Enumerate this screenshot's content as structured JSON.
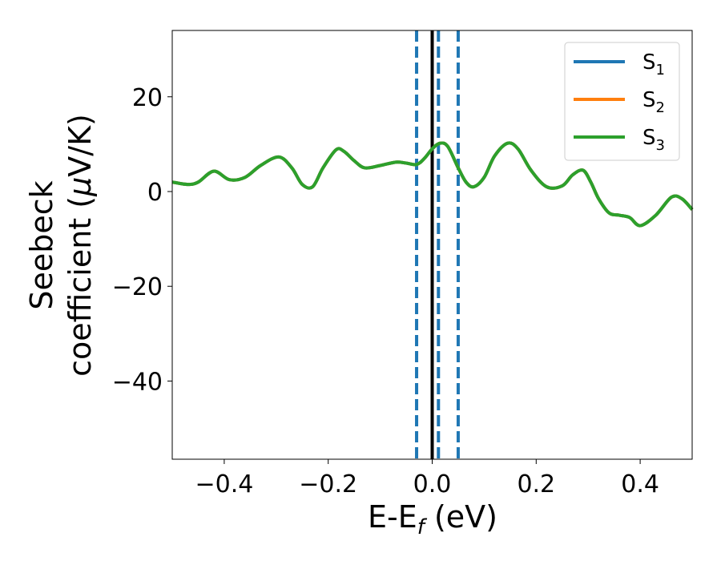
{
  "chart_data": {
    "type": "line",
    "xlabel_main": "E-E",
    "xlabel_sub": "f",
    "xlabel_unit": " (eV)",
    "ylabel_line1": "Seebeck",
    "ylabel_line2_prefix": "coefficient  (",
    "ylabel_mu": "μ",
    "ylabel_line2_suffix": "V/K)",
    "xlim": [
      -0.5,
      0.5
    ],
    "ylim": [
      -56.5,
      34
    ],
    "x_ticks": [
      -0.4,
      -0.2,
      0.0,
      0.2,
      0.4
    ],
    "x_tick_labels": [
      "−0.4",
      "−0.2",
      "0.0",
      "0.2",
      "0.4"
    ],
    "y_ticks": [
      20,
      0,
      -20,
      -40
    ],
    "y_tick_labels": [
      "20",
      "0",
      "−20",
      "−40"
    ],
    "grid": false,
    "legend_position": "top-right",
    "series": [
      {
        "name": "S",
        "sub": "1",
        "color": "#1f77b4",
        "x": [
          -0.5,
          -0.47,
          -0.45,
          -0.42,
          -0.39,
          -0.36,
          -0.33,
          -0.295,
          -0.27,
          -0.25,
          -0.23,
          -0.21,
          -0.185,
          -0.17,
          -0.15,
          -0.13,
          -0.1,
          -0.07,
          -0.05,
          -0.03,
          -0.015,
          0.0,
          0.015,
          0.03,
          0.05,
          0.065,
          0.08,
          0.1,
          0.12,
          0.145,
          0.165,
          0.19,
          0.22,
          0.25,
          0.27,
          0.29,
          0.305,
          0.32,
          0.34,
          0.36,
          0.38,
          0.4,
          0.43,
          0.46,
          0.48,
          0.5
        ],
        "y": [
          2.0,
          1.5,
          2.0,
          4.3,
          2.5,
          3.0,
          5.5,
          7.3,
          5.0,
          1.5,
          1.0,
          5.0,
          8.8,
          8.5,
          6.5,
          5.0,
          5.5,
          6.2,
          6.0,
          5.7,
          7.0,
          9.0,
          10.2,
          9.5,
          5.0,
          2.0,
          1.0,
          3.0,
          7.5,
          10.2,
          9.0,
          4.5,
          1.0,
          1.2,
          3.5,
          4.5,
          2.0,
          -1.5,
          -4.5,
          -5.0,
          -5.5,
          -7.2,
          -5.0,
          -1.2,
          -1.5,
          -3.8
        ]
      },
      {
        "name": "S",
        "sub": "2",
        "color": "#ff7f0e",
        "x": [
          -0.5,
          -0.47,
          -0.45,
          -0.42,
          -0.39,
          -0.36,
          -0.33,
          -0.295,
          -0.27,
          -0.25,
          -0.23,
          -0.21,
          -0.185,
          -0.17,
          -0.15,
          -0.13,
          -0.1,
          -0.07,
          -0.05,
          -0.03,
          -0.015,
          0.0,
          0.015,
          0.03,
          0.05,
          0.065,
          0.08,
          0.1,
          0.12,
          0.145,
          0.165,
          0.19,
          0.22,
          0.25,
          0.27,
          0.29,
          0.305,
          0.32,
          0.34,
          0.36,
          0.38,
          0.4,
          0.43,
          0.46,
          0.48,
          0.5
        ],
        "y": [
          2.0,
          1.5,
          2.0,
          4.3,
          2.5,
          3.0,
          5.5,
          7.3,
          5.0,
          1.5,
          1.0,
          5.0,
          8.8,
          8.5,
          6.5,
          5.0,
          5.5,
          6.2,
          6.0,
          5.7,
          7.0,
          9.0,
          10.2,
          9.5,
          5.0,
          2.0,
          1.0,
          3.0,
          7.5,
          10.2,
          9.0,
          4.5,
          1.0,
          1.2,
          3.5,
          4.5,
          2.0,
          -1.5,
          -4.5,
          -5.0,
          -5.5,
          -7.2,
          -5.0,
          -1.2,
          -1.5,
          -3.8
        ]
      },
      {
        "name": "S",
        "sub": "3",
        "color": "#2ca02c",
        "x": [
          -0.5,
          -0.47,
          -0.45,
          -0.42,
          -0.39,
          -0.36,
          -0.33,
          -0.295,
          -0.27,
          -0.25,
          -0.23,
          -0.21,
          -0.185,
          -0.17,
          -0.15,
          -0.13,
          -0.1,
          -0.07,
          -0.05,
          -0.03,
          -0.015,
          0.0,
          0.015,
          0.03,
          0.05,
          0.065,
          0.08,
          0.1,
          0.12,
          0.145,
          0.165,
          0.19,
          0.22,
          0.25,
          0.27,
          0.29,
          0.305,
          0.32,
          0.34,
          0.36,
          0.38,
          0.4,
          0.43,
          0.46,
          0.48,
          0.5
        ],
        "y": [
          2.0,
          1.5,
          2.0,
          4.3,
          2.5,
          3.0,
          5.5,
          7.3,
          5.0,
          1.5,
          1.0,
          5.0,
          8.8,
          8.5,
          6.5,
          5.0,
          5.5,
          6.2,
          6.0,
          5.7,
          7.0,
          9.0,
          10.2,
          9.5,
          5.0,
          2.0,
          1.0,
          3.0,
          7.5,
          10.2,
          9.0,
          4.5,
          1.0,
          1.2,
          3.5,
          4.5,
          2.0,
          -1.5,
          -4.5,
          -5.0,
          -5.5,
          -7.2,
          -5.0,
          -1.2,
          -1.5,
          -3.8
        ]
      }
    ],
    "vlines": [
      {
        "x": 0.0,
        "color": "#000000",
        "style": "solid"
      },
      {
        "x": -0.03,
        "color": "#1f77b4",
        "style": "dashed"
      },
      {
        "x": 0.012,
        "color": "#1f77b4",
        "style": "dashed"
      },
      {
        "x": 0.05,
        "color": "#1f77b4",
        "style": "dashed"
      }
    ]
  }
}
